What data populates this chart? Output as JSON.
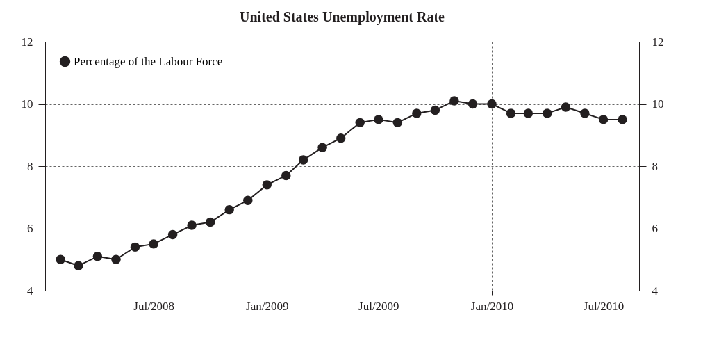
{
  "chart_data": {
    "type": "line",
    "title": "United States Unemployment Rate",
    "x": [
      "2008-02",
      "2008-03",
      "2008-04",
      "2008-05",
      "2008-06",
      "2008-07",
      "2008-08",
      "2008-09",
      "2008-10",
      "2008-11",
      "2008-12",
      "2009-01",
      "2009-02",
      "2009-03",
      "2009-04",
      "2009-05",
      "2009-06",
      "2009-07",
      "2009-08",
      "2009-09",
      "2009-10",
      "2009-11",
      "2009-12",
      "2010-01",
      "2010-02",
      "2010-03",
      "2010-04",
      "2010-05",
      "2010-06",
      "2010-07",
      "2010-08"
    ],
    "series": [
      {
        "name": "Percentage of the Labour Force",
        "color": "#231f20",
        "values": [
          5.0,
          4.8,
          5.1,
          5.0,
          5.4,
          5.5,
          5.8,
          6.1,
          6.2,
          6.6,
          6.9,
          7.4,
          7.7,
          8.2,
          8.6,
          8.9,
          9.4,
          9.5,
          9.4,
          9.7,
          9.8,
          10.1,
          10.0,
          10.0,
          9.7,
          9.7,
          9.7,
          9.9,
          9.7,
          9.5,
          9.5
        ]
      }
    ],
    "xlim": [
      "2008-01-07",
      "2010-08-28"
    ],
    "xticks": [
      {
        "value": "2008-07",
        "label": "Jul/2008"
      },
      {
        "value": "2009-01",
        "label": "Jan/2009"
      },
      {
        "value": "2009-07",
        "label": "Jul/2009"
      },
      {
        "value": "2010-01",
        "label": "Jan/2010"
      },
      {
        "value": "2010-07",
        "label": "Jul/2010"
      }
    ],
    "ylim": [
      4,
      12
    ],
    "yticks": [
      4,
      6,
      8,
      10,
      12
    ],
    "y2lim": [
      4,
      12
    ],
    "y2ticks": [
      4,
      6,
      8,
      10,
      12
    ],
    "grid": true,
    "legend": "top left",
    "marker": "circle",
    "line_style": "solid"
  }
}
